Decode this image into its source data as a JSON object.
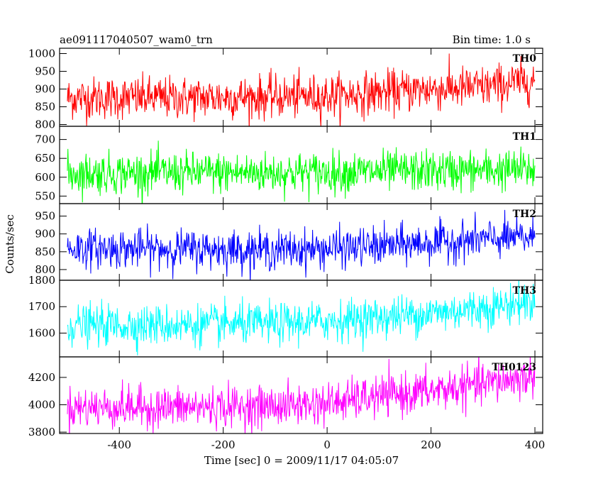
{
  "header": {
    "left_title": "ae091117040507_wam0_trn",
    "right_title": "Bin time: 1.0 s"
  },
  "chart_data": {
    "type": "line",
    "title": "ae091117040507_wam0_trn",
    "subtitle": "Bin time: 1.0 s",
    "xlabel": "Time [sec] 0 = 2009/11/17 04:05:07",
    "ylabel": "Counts/sec",
    "xlim": [
      -515,
      415
    ],
    "xticks": [
      -400,
      -200,
      0,
      200,
      400
    ],
    "x_range": [
      -500,
      400
    ],
    "bin_time_s": 1.0,
    "grid": false,
    "panels": [
      {
        "name": "TH0",
        "color": "#ff0000",
        "ylim": [
          795,
          1015
        ],
        "yticks": [
          800,
          850,
          900,
          950,
          1000
        ],
        "x_knots": [
          -500,
          -300,
          -100,
          0,
          100,
          200,
          300,
          400
        ],
        "mean_knots": [
          875,
          875,
          878,
          880,
          890,
          900,
          905,
          925
        ],
        "noise_sd": 30
      },
      {
        "name": "TH1",
        "color": "#00ff00",
        "ylim": [
          530,
          735
        ],
        "yticks": [
          550,
          600,
          650,
          700
        ],
        "x_knots": [
          -500,
          -300,
          -100,
          0,
          100,
          200,
          300,
          400
        ],
        "mean_knots": [
          610,
          612,
          612,
          613,
          615,
          617,
          618,
          620
        ],
        "noise_sd": 27
      },
      {
        "name": "TH2",
        "color": "#0000ff",
        "ylim": [
          770,
          985
        ],
        "yticks": [
          800,
          850,
          900,
          950
        ],
        "x_knots": [
          -500,
          -300,
          -100,
          0,
          100,
          200,
          300,
          400
        ],
        "mean_knots": [
          860,
          858,
          855,
          858,
          865,
          875,
          885,
          890
        ],
        "noise_sd": 27
      },
      {
        "name": "TH3",
        "color": "#00ffff",
        "ylim": [
          1510,
          1800
        ],
        "yticks": [
          1600,
          1700,
          1800
        ],
        "x_knots": [
          -500,
          -300,
          -100,
          0,
          100,
          200,
          300,
          400
        ],
        "mean_knots": [
          1630,
          1630,
          1635,
          1645,
          1660,
          1675,
          1695,
          1720
        ],
        "noise_sd": 38
      },
      {
        "name": "TH0123",
        "color": "#ff00ff",
        "ylim": [
          3790,
          4350
        ],
        "yticks": [
          3800,
          4000,
          4200
        ],
        "x_knots": [
          -500,
          -300,
          -100,
          0,
          100,
          200,
          300,
          400
        ],
        "mean_knots": [
          3980,
          3980,
          3990,
          4010,
          4060,
          4100,
          4150,
          4210
        ],
        "noise_sd": 75
      }
    ]
  }
}
